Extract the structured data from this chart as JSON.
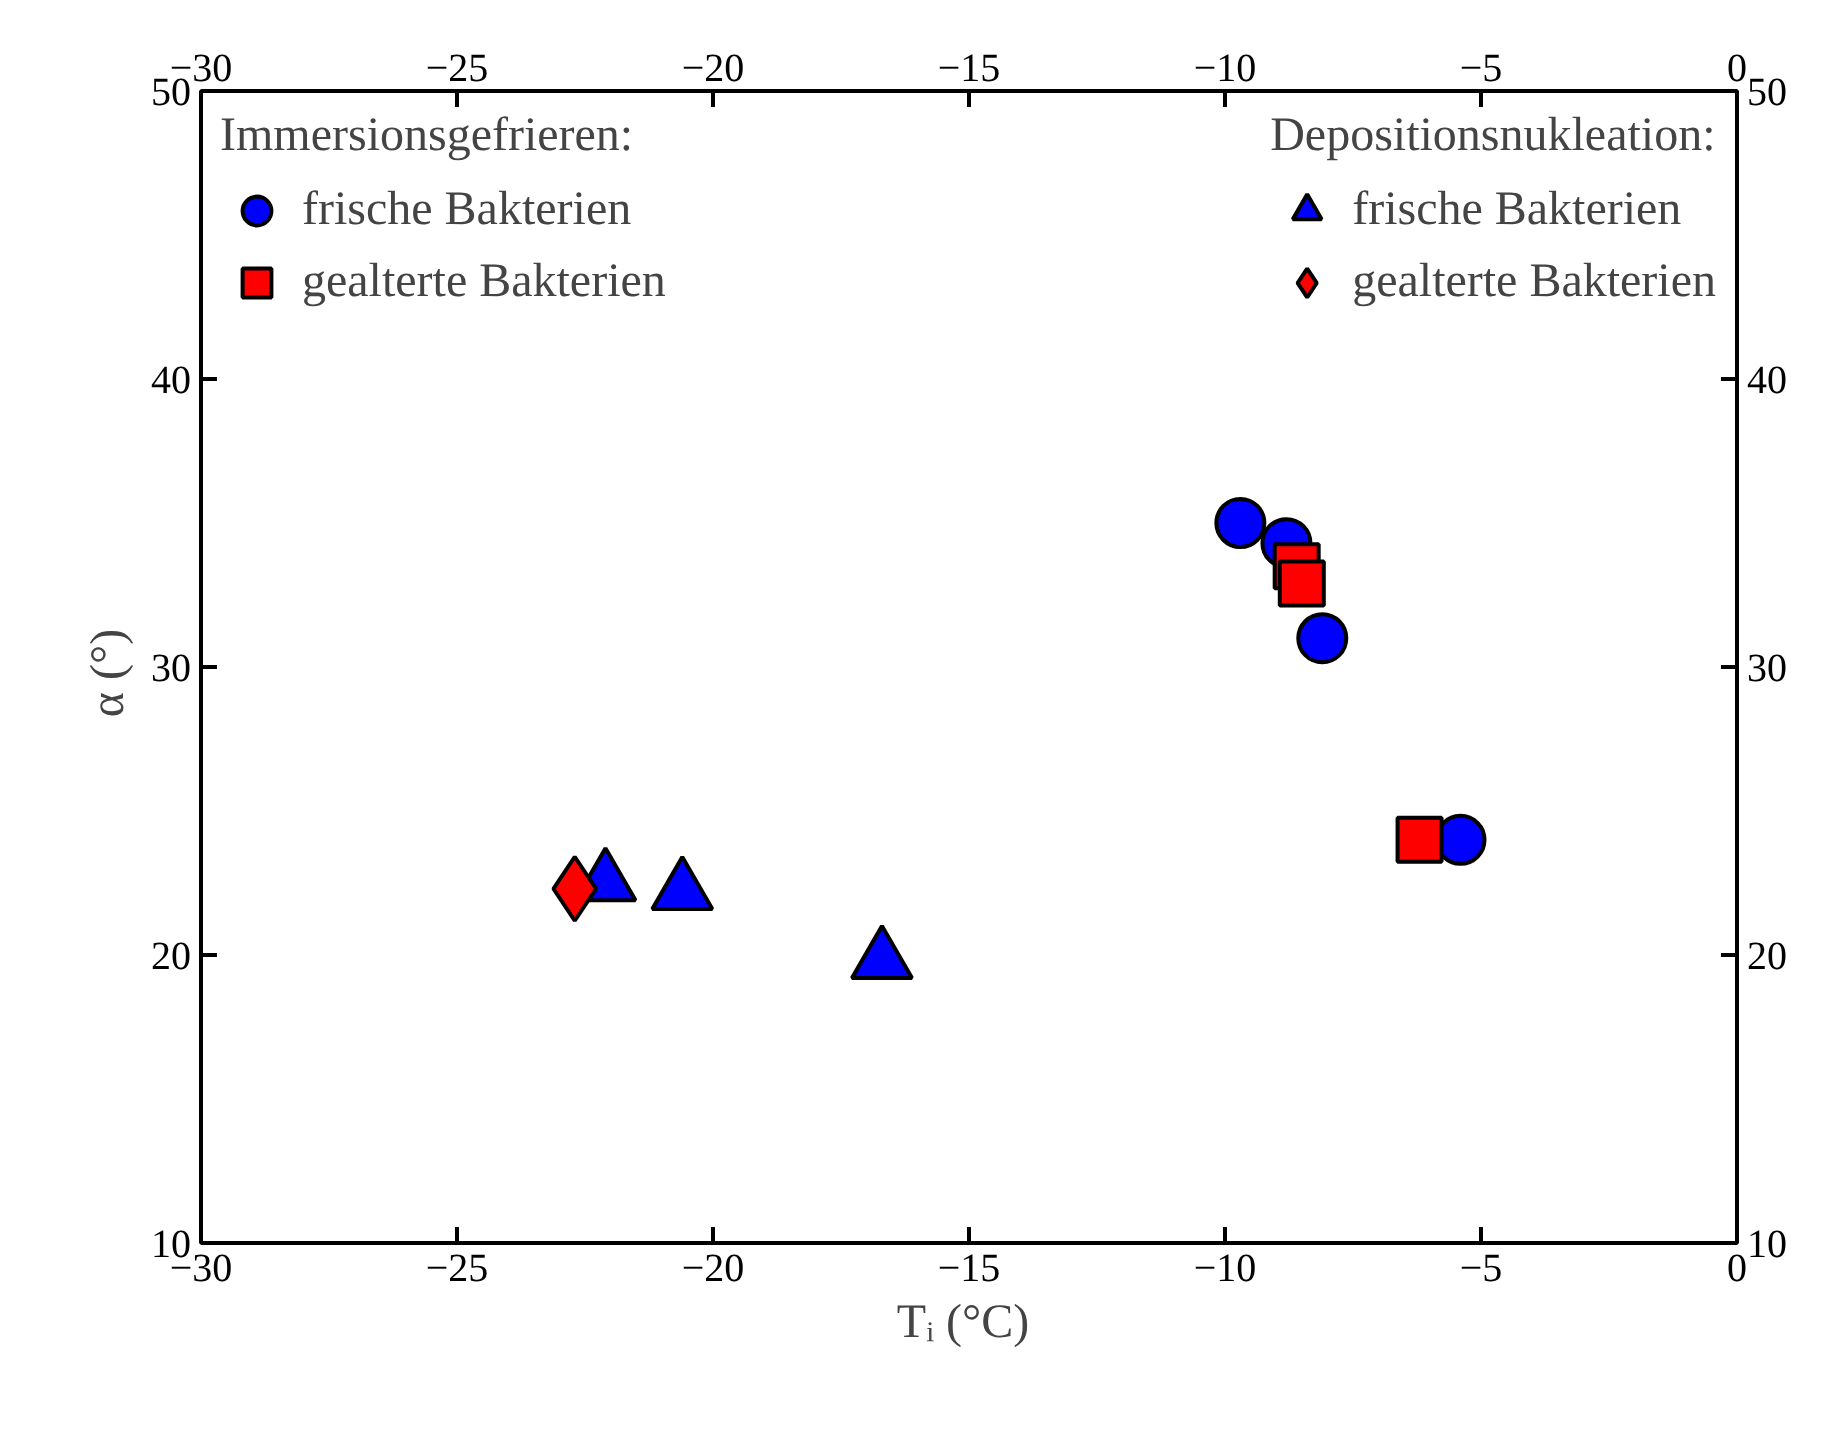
{
  "chart_data": {
    "type": "scatter",
    "xlabel": "Tᵢ  (°C)",
    "ylabel": "α  (°)",
    "annotations": [
      "Immersionsgefrieren:",
      "Depositionsnukleation:"
    ],
    "xlim": [
      -30,
      0
    ],
    "xticks": [
      -30,
      -25,
      -20,
      -15,
      -10,
      -5,
      0
    ],
    "ylim": [
      10,
      50
    ],
    "yticks": [
      10,
      20,
      30,
      40,
      50
    ],
    "x2lim": [
      -30,
      0
    ],
    "x2ticks": [
      -30,
      -25,
      -20,
      -15,
      -10,
      -5,
      0
    ],
    "y2lim": [
      10,
      50
    ],
    "y2ticks": [
      10,
      20,
      30,
      40,
      50
    ],
    "grid": false,
    "legend": "top",
    "series": [
      {
        "name": "frische Bakterien",
        "color": "#0000ff",
        "marker": "circle",
        "x": [
          -9.7,
          -8.8,
          -8.1,
          -5.4
        ],
        "values": [
          35.0,
          34.3,
          31.0,
          24.0
        ]
      },
      {
        "name": "gealterte Bakterien",
        "color": "#ff0000",
        "marker": "square",
        "x": [
          -8.6,
          -8.5,
          -6.2
        ],
        "values": [
          33.5,
          32.9,
          24.0
        ]
      },
      {
        "name": "frische Bakterien",
        "color": "#0000ff",
        "marker": "triangle",
        "x": [
          -22.1,
          -20.6,
          -16.7
        ],
        "values": [
          22.5,
          22.2,
          19.8
        ]
      },
      {
        "name": "gealterte Bakterien",
        "color": "#ff0000",
        "marker": "diamond",
        "x": [
          -22.7
        ],
        "values": [
          22.3
        ]
      }
    ]
  }
}
